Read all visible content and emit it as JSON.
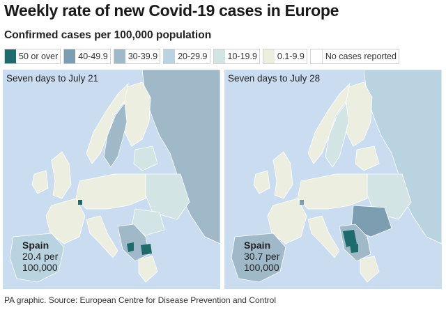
{
  "title": "Weekly rate of new Covid-19 cases in Europe",
  "subtitle": "Confirmed cases per 100,000 population",
  "legend": [
    {
      "label": "50 or over",
      "color": "#1e6b6b"
    },
    {
      "label": "40-49.9",
      "color": "#7d9db0"
    },
    {
      "label": "30-39.9",
      "color": "#9fb9c8"
    },
    {
      "label": "20-29.9",
      "color": "#b9d4e0"
    },
    {
      "label": "10-19.9",
      "color": "#d3e4e4"
    },
    {
      "label": "0.1-9.9",
      "color": "#ecefdf"
    },
    {
      "label": "No cases reported",
      "color": "#ffffff"
    }
  ],
  "panels": [
    {
      "label": "Seven days to July 21",
      "spain": {
        "name": "Spain",
        "value": "20.4 per 100,000",
        "band": "20-29.9"
      }
    },
    {
      "label": "Seven days to July 28",
      "spain": {
        "name": "Spain",
        "value": "30.7 per 100,000",
        "band": "30-39.9"
      }
    }
  ],
  "source": "PA graphic. Source: European Centre for Disease Prevention and Control"
}
